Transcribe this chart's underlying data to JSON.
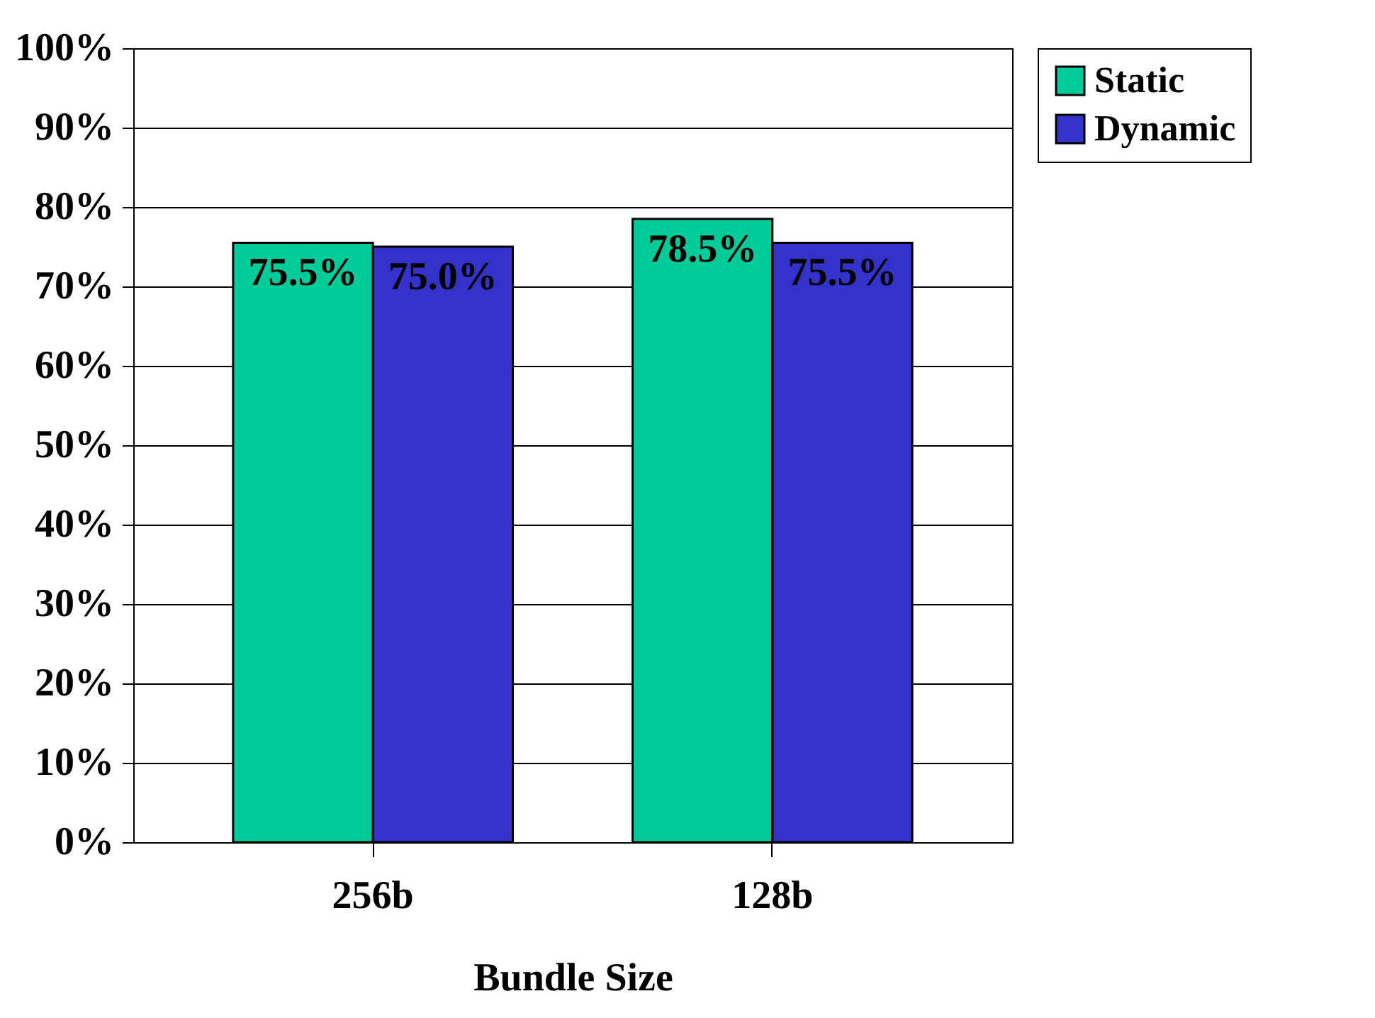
{
  "chart_data": {
    "type": "bar",
    "xlabel": "Bundle Size",
    "categories": [
      "256b",
      "128b"
    ],
    "series": [
      {
        "name": "Static",
        "color": "#00cc99",
        "values": [
          75.5,
          78.5
        ]
      },
      {
        "name": "Dynamic",
        "color": "#3333cc",
        "values": [
          75.0,
          75.5
        ]
      }
    ],
    "ylim": [
      0,
      100
    ],
    "yticks": [
      {
        "value": 0,
        "label": "0%"
      },
      {
        "value": 10,
        "label": "10%"
      },
      {
        "value": 20,
        "label": "20%"
      },
      {
        "value": 30,
        "label": "30%"
      },
      {
        "value": 40,
        "label": "40%"
      },
      {
        "value": 50,
        "label": "50%"
      },
      {
        "value": 60,
        "label": "60%"
      },
      {
        "value": 70,
        "label": "70%"
      },
      {
        "value": 80,
        "label": "80%"
      },
      {
        "value": 90,
        "label": "90%"
      },
      {
        "value": 100,
        "label": "100%"
      }
    ],
    "value_labels": [
      [
        "75.5%",
        "78.5%"
      ],
      [
        "75.0%",
        "75.5%"
      ]
    ],
    "grid": "y",
    "legend": "right"
  }
}
